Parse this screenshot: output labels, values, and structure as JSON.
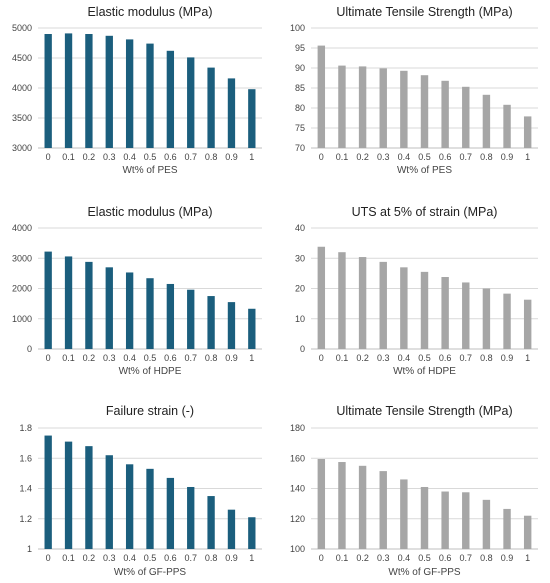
{
  "chart_data": [
    {
      "type": "bar",
      "title": "Elastic modulus (MPa)",
      "xlabel": "Wt% of PES",
      "ylabel": "",
      "categories": [
        "0",
        "0.1",
        "0.2",
        "0.3",
        "0.4",
        "0.5",
        "0.6",
        "0.7",
        "0.8",
        "0.9",
        "1"
      ],
      "values": [
        4900,
        4910,
        4900,
        4870,
        4810,
        4740,
        4620,
        4510,
        4340,
        4160,
        3980
      ],
      "ylim": [
        3000,
        5000
      ],
      "yticks": [
        "3000",
        "3500",
        "4000",
        "4500",
        "5000"
      ],
      "color": "#1b5e7d",
      "grid": true
    },
    {
      "type": "bar",
      "title": "Ultimate Tensile Strength (MPa)",
      "xlabel": "Wt% of PES",
      "ylabel": "",
      "categories": [
        "0",
        "0.1",
        "0.2",
        "0.3",
        "0.4",
        "0.5",
        "0.6",
        "0.7",
        "0.8",
        "0.9",
        "1"
      ],
      "values": [
        95.6,
        90.6,
        90.4,
        89.9,
        89.3,
        88.2,
        86.8,
        85.3,
        83.3,
        80.8,
        77.9
      ],
      "ylim": [
        70,
        100
      ],
      "yticks": [
        "70",
        "75",
        "80",
        "85",
        "90",
        "95",
        "100"
      ],
      "color": "#a6a6a6",
      "grid": true
    },
    {
      "type": "bar",
      "title": "Elastic modulus (MPa)",
      "xlabel": "Wt% of HDPE",
      "ylabel": "",
      "categories": [
        "0",
        "0.1",
        "0.2",
        "0.3",
        "0.4",
        "0.5",
        "0.6",
        "0.7",
        "0.8",
        "0.9",
        "1"
      ],
      "values": [
        3220,
        3060,
        2880,
        2700,
        2530,
        2340,
        2150,
        1960,
        1750,
        1550,
        1330
      ],
      "ylim": [
        0,
        4000
      ],
      "yticks": [
        "0",
        "1000",
        "2000",
        "3000",
        "4000"
      ],
      "color": "#1b5e7d",
      "grid": true
    },
    {
      "type": "bar",
      "title": "UTS at 5% of strain (MPa)",
      "xlabel": "Wt% of HDPE",
      "ylabel": "",
      "categories": [
        "0",
        "0.1",
        "0.2",
        "0.3",
        "0.4",
        "0.5",
        "0.6",
        "0.7",
        "0.8",
        "0.9",
        "1"
      ],
      "values": [
        33.8,
        32.0,
        30.4,
        28.8,
        27.0,
        25.5,
        23.8,
        22.0,
        20.0,
        18.3,
        16.3
      ],
      "ylim": [
        0,
        40
      ],
      "yticks": [
        "0",
        "10",
        "20",
        "30",
        "40"
      ],
      "color": "#a6a6a6",
      "grid": true
    },
    {
      "type": "bar",
      "title": "Failure strain (-)",
      "xlabel": "Wt% of GF-PPS",
      "ylabel": "",
      "categories": [
        "0",
        "0.1",
        "0.2",
        "0.3",
        "0.4",
        "0.5",
        "0.6",
        "0.7",
        "0.8",
        "0.9",
        "1"
      ],
      "values": [
        1.75,
        1.71,
        1.68,
        1.62,
        1.56,
        1.53,
        1.47,
        1.41,
        1.35,
        1.26,
        1.21
      ],
      "ylim": [
        1,
        1.8
      ],
      "yticks": [
        "1",
        "1.2",
        "1.4",
        "1.6",
        "1.8"
      ],
      "color": "#1b5e7d",
      "grid": true
    },
    {
      "type": "bar",
      "title": "Ultimate Tensile Strength (MPa)",
      "xlabel": "Wt% of GF-PPS",
      "ylabel": "",
      "categories": [
        "0",
        "0.1",
        "0.2",
        "0.3",
        "0.4",
        "0.5",
        "0.6",
        "0.7",
        "0.8",
        "0.9",
        "1"
      ],
      "values": [
        159.5,
        157.5,
        155.0,
        151.5,
        146.0,
        141.0,
        138.0,
        137.5,
        132.5,
        126.5,
        122.0
      ],
      "ylim": [
        100,
        180
      ],
      "yticks": [
        "100",
        "120",
        "140",
        "160",
        "180"
      ],
      "color": "#a6a6a6",
      "grid": true
    }
  ]
}
